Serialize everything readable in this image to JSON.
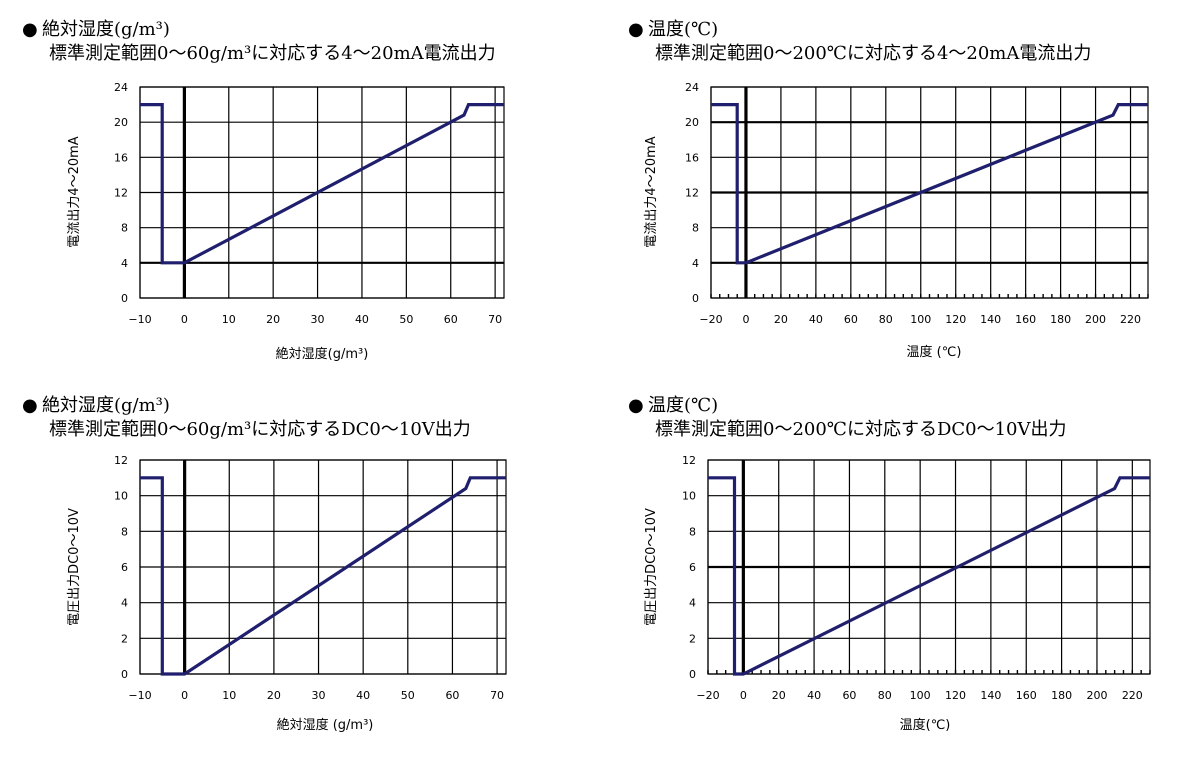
{
  "charts": [
    {
      "bullet": "●",
      "title": "絶対湿度(g/m³)",
      "subtitle": "標準測定範囲0～60g/m³に対応する4～20mA電流出力",
      "chart_data": {
        "type": "line",
        "xlabel": "絶対湿度(g/m³)",
        "ylabel": "電流出力4～20mA",
        "xlim": [
          -10,
          72
        ],
        "ylim": [
          0,
          24
        ],
        "x_ticks": [
          -10,
          0,
          10,
          20,
          30,
          40,
          50,
          60,
          70
        ],
        "y_ticks": [
          0,
          4,
          8,
          12,
          16,
          20,
          24
        ],
        "x_tick_labels": [
          "−10",
          "0",
          "10",
          "20",
          "30",
          "40",
          "50",
          "60",
          "70"
        ],
        "y_tick_labels": [
          "0",
          "4",
          "8",
          "12",
          "16",
          "20",
          "24"
        ],
        "bold_x": [
          0
        ],
        "bold_y": [
          4
        ],
        "grid": true,
        "minor_x_step": null,
        "series": [
          {
            "color": "#1f1f6e",
            "points": [
              [
                -10,
                22
              ],
              [
                -5,
                22
              ],
              [
                -5,
                4
              ],
              [
                0,
                4
              ],
              [
                63,
                20.8
              ],
              [
                64,
                22
              ],
              [
                72,
                22
              ]
            ]
          }
        ]
      }
    },
    {
      "bullet": "●",
      "title": "温度(℃)",
      "subtitle": "標準測定範囲0～200℃に対応する4～20mA電流出力",
      "chart_data": {
        "type": "line",
        "xlabel": "温度 (℃)",
        "ylabel": "電流出力4～20mA",
        "xlim": [
          -20,
          230
        ],
        "ylim": [
          0,
          24
        ],
        "x_ticks": [
          -20,
          0,
          20,
          40,
          60,
          80,
          100,
          120,
          140,
          160,
          180,
          200,
          220
        ],
        "y_ticks": [
          0,
          4,
          8,
          12,
          16,
          20,
          24
        ],
        "x_tick_labels": [
          "−20",
          "0",
          "20",
          "40",
          "60",
          "80",
          "100",
          "120",
          "140",
          "160",
          "180",
          "200",
          "220"
        ],
        "y_tick_labels": [
          "0",
          "4",
          "8",
          "12",
          "16",
          "20",
          "24"
        ],
        "bold_x": [
          0
        ],
        "bold_y": [
          4,
          12,
          20
        ],
        "grid": true,
        "minor_x_step": 5,
        "series": [
          {
            "color": "#1f1f6e",
            "points": [
              [
                -20,
                22
              ],
              [
                -5,
                22
              ],
              [
                -5,
                4
              ],
              [
                0,
                4
              ],
              [
                210,
                20.8
              ],
              [
                213,
                22
              ],
              [
                230,
                22
              ]
            ]
          }
        ]
      }
    },
    {
      "bullet": "●",
      "title": "絶対湿度(g/m³)",
      "subtitle": "標準測定範囲0～60g/m³に対応するDC0～10V出力",
      "chart_data": {
        "type": "line",
        "xlabel": "絶対湿度 (g/m³)",
        "ylabel": "電圧出力DC0～10V",
        "xlim": [
          -10,
          72
        ],
        "ylim": [
          0,
          12
        ],
        "x_ticks": [
          -10,
          0,
          10,
          20,
          30,
          40,
          50,
          60,
          70
        ],
        "y_ticks": [
          0,
          2,
          4,
          6,
          8,
          10,
          12
        ],
        "x_tick_labels": [
          "−10",
          "0",
          "10",
          "20",
          "30",
          "40",
          "50",
          "60",
          "70"
        ],
        "y_tick_labels": [
          "0",
          "2",
          "4",
          "6",
          "8",
          "10",
          "12"
        ],
        "bold_x": [
          0
        ],
        "bold_y": [],
        "grid": true,
        "minor_x_step": null,
        "series": [
          {
            "color": "#1f1f6e",
            "points": [
              [
                -10,
                11
              ],
              [
                -5,
                11
              ],
              [
                -5,
                0
              ],
              [
                0,
                0
              ],
              [
                63,
                10.4
              ],
              [
                64,
                11
              ],
              [
                72,
                11
              ]
            ]
          }
        ]
      }
    },
    {
      "bullet": "●",
      "title": "温度(℃)",
      "subtitle": "標準測定範囲0～200℃に対応するDC0～10V出力",
      "chart_data": {
        "type": "line",
        "xlabel": "温度(℃)",
        "ylabel": "電圧出力DC0～10V",
        "xlim": [
          -20,
          230
        ],
        "ylim": [
          0,
          12
        ],
        "x_ticks": [
          -20,
          0,
          20,
          40,
          60,
          80,
          100,
          120,
          140,
          160,
          180,
          200,
          220
        ],
        "y_ticks": [
          0,
          2,
          4,
          6,
          8,
          10,
          12
        ],
        "x_tick_labels": [
          "−20",
          "0",
          "20",
          "40",
          "60",
          "80",
          "100",
          "120",
          "140",
          "160",
          "180",
          "200",
          "220"
        ],
        "y_tick_labels": [
          "0",
          "2",
          "4",
          "6",
          "8",
          "10",
          "12"
        ],
        "bold_x": [
          0
        ],
        "bold_y": [
          6
        ],
        "grid": true,
        "minor_x_step": 5,
        "series": [
          {
            "color": "#1f1f6e",
            "points": [
              [
                -20,
                11
              ],
              [
                -5,
                11
              ],
              [
                -5,
                0
              ],
              [
                0,
                0
              ],
              [
                210,
                10.4
              ],
              [
                213,
                11
              ],
              [
                230,
                11
              ]
            ]
          }
        ]
      }
    }
  ]
}
